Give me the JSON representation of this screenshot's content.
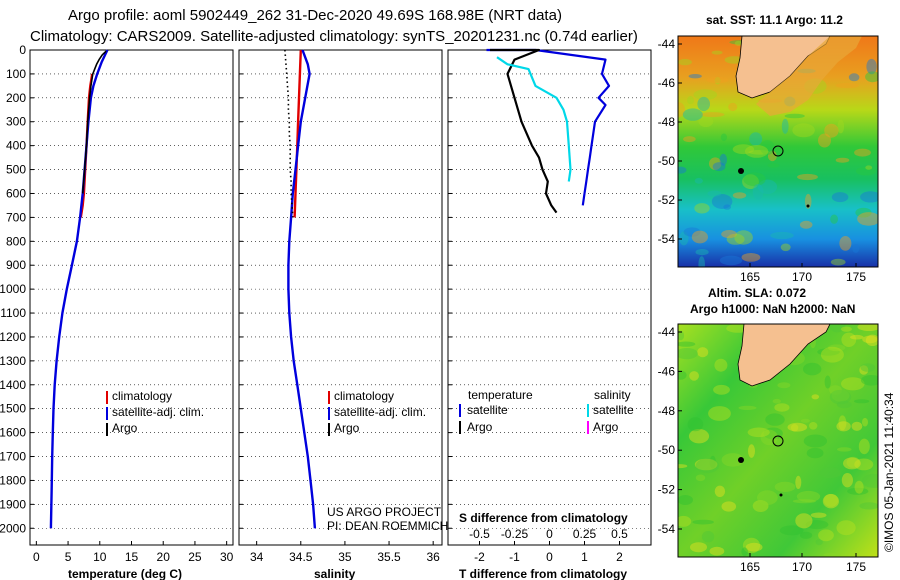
{
  "header": {
    "line1": "Argo profile: aoml 5902449_262 31-Dec-2020 49.69S 168.98E (NRT data)",
    "line2": "Climatology: CARS2009. Satellite-adjusted climatology: synTS_20201231.nc (0.74d earlier)"
  },
  "colors": {
    "climatology": "#e00000",
    "satellite": "#0000dd",
    "argo": "#000000",
    "sal_satellite": "#00d8e8",
    "sal_argo": "#ff00ff"
  },
  "chart_data": [
    {
      "type": "line",
      "id": "temperature",
      "xlabel": "temperature (deg C)",
      "xlim": [
        -1,
        31
      ],
      "xticks": [
        0,
        5,
        10,
        15,
        20,
        25,
        30
      ],
      "ylim": [
        2070,
        0
      ],
      "yticks": [
        0,
        100,
        200,
        300,
        400,
        500,
        600,
        700,
        800,
        900,
        1000,
        1100,
        1200,
        1300,
        1400,
        1500,
        1600,
        1700,
        1800,
        1900,
        2000
      ],
      "legend": [
        "climatology",
        "satellite-adj. clim.",
        "Argo"
      ],
      "series": [
        {
          "name": "climatology",
          "color": "#e00000",
          "x": [
            8.8,
            8.5,
            8.3,
            8.1,
            7.9,
            7.7,
            7.5,
            7.3,
            7.0
          ],
          "y": [
            100,
            150,
            200,
            300,
            400,
            500,
            600,
            650,
            700
          ]
        },
        {
          "name": "satellite-adj. clim.",
          "color": "#0000dd",
          "x": [
            11.2,
            10.3,
            9.6,
            9.0,
            8.6,
            8.2,
            7.9,
            7.6,
            7.3,
            6.9,
            6.4,
            5.6,
            4.8,
            4.1,
            3.6,
            3.2,
            2.9,
            2.7,
            2.6,
            2.5,
            2.4,
            2.3
          ],
          "y": [
            0,
            50,
            100,
            150,
            200,
            300,
            400,
            500,
            600,
            700,
            800,
            900,
            1000,
            1100,
            1200,
            1300,
            1400,
            1500,
            1600,
            1700,
            1850,
            2000
          ]
        },
        {
          "name": "Argo",
          "color": "#000000",
          "x": [
            11.0,
            10.4,
            9.9,
            9.5,
            9.2,
            8.9,
            8.6,
            8.4,
            8.1,
            7.9,
            7.6,
            7.3
          ],
          "y": [
            5,
            20,
            40,
            60,
            80,
            100,
            150,
            200,
            300,
            400,
            500,
            600
          ]
        }
      ]
    },
    {
      "type": "line",
      "id": "salinity",
      "xlabel": "salinity",
      "xlim": [
        33.8,
        36.1
      ],
      "xticks": [
        34,
        34.5,
        35,
        35.5,
        36
      ],
      "ylim": [
        2070,
        0
      ],
      "legend": [
        "climatology",
        "satellite-adj. clim.",
        "Argo"
      ],
      "annotation": [
        "US ARGO PROJECT",
        "PI: DEAN ROEMMICH"
      ],
      "series": [
        {
          "name": "climatology",
          "color": "#e00000",
          "x": [
            34.5,
            34.49,
            34.48,
            34.47,
            34.46,
            34.45,
            34.44,
            34.43
          ],
          "y": [
            0,
            100,
            200,
            300,
            400,
            500,
            600,
            700
          ]
        },
        {
          "name": "satellite-adj. clim.",
          "color": "#0000dd",
          "x": [
            34.52,
            34.58,
            34.6,
            34.55,
            34.5,
            34.47,
            34.44,
            34.41,
            34.39,
            34.37,
            34.36,
            34.36,
            34.37,
            34.39,
            34.42,
            34.46,
            34.5,
            34.54,
            34.58,
            34.61,
            34.64,
            34.66
          ],
          "y": [
            0,
            60,
            100,
            200,
            300,
            400,
            500,
            600,
            700,
            800,
            900,
            1000,
            1100,
            1200,
            1300,
            1400,
            1500,
            1600,
            1700,
            1800,
            1900,
            2000
          ]
        },
        {
          "name": "Argo",
          "color": "#000000",
          "x": [
            34.32,
            34.33,
            34.34,
            34.35,
            34.36,
            34.36,
            34.37,
            34.37,
            34.38,
            34.38,
            34.38,
            34.39,
            34.39,
            34.4,
            34.41
          ],
          "y": [
            0,
            50,
            100,
            150,
            200,
            250,
            300,
            350,
            400,
            450,
            500,
            550,
            600,
            650,
            700
          ]
        }
      ]
    },
    {
      "type": "line",
      "id": "difference",
      "xlabel": "T difference from climatology",
      "xlabel_top": "S difference from climatology",
      "xlim": [
        -2.9,
        2.9
      ],
      "xticks": [
        -2,
        -1,
        0,
        1,
        2
      ],
      "xticks_top": [
        "-0.5",
        "-0.25",
        "0",
        "0.25",
        "0.5"
      ],
      "ylim": [
        2070,
        0
      ],
      "legend_left_title": "temperature",
      "legend_right_title": "salinity",
      "legend_left": [
        "satellite",
        "Argo"
      ],
      "legend_right": [
        "satellite",
        "Argo"
      ],
      "series": [
        {
          "name": "temperature satellite",
          "color": "#0000dd",
          "x": [
            -1.8,
            -0.4,
            1.6,
            1.5,
            1.7,
            1.4,
            1.6,
            1.3,
            1.2,
            1.15,
            1.1,
            1.05,
            1.0,
            0.95
          ],
          "y": [
            0,
            0,
            40,
            100,
            150,
            200,
            230,
            300,
            400,
            450,
            500,
            550,
            600,
            650
          ]
        },
        {
          "name": "temperature Argo",
          "color": "#000000",
          "x": [
            -1.7,
            -0.3,
            -1.0,
            -1.2,
            -1.0,
            -0.8,
            -0.5,
            -0.3,
            -0.2,
            -0.05,
            -0.1,
            0.05,
            0.2
          ],
          "y": [
            0,
            0,
            40,
            100,
            200,
            300,
            400,
            450,
            500,
            550,
            600,
            650,
            680
          ]
        },
        {
          "name": "salinity satellite",
          "color": "#00d8e8",
          "x": [
            -1.5,
            -1.2,
            -0.6,
            -0.4,
            0.2,
            0.4,
            0.5,
            0.55,
            0.6,
            0.55
          ],
          "y": [
            30,
            60,
            80,
            150,
            200,
            250,
            300,
            400,
            500,
            550
          ]
        }
      ]
    }
  ],
  "maps": {
    "top": {
      "title": "sat. SST: 11.1 Argo: 11.2",
      "xticks": [
        "165",
        "170",
        "175"
      ],
      "yticks": [
        "-44",
        "-46",
        "-48",
        "-50",
        "-52",
        "-54"
      ]
    },
    "bottom": {
      "title_line1": "Altim. SLA: 0.072",
      "title_line2": "Argo h1000: NaN h2000: NaN",
      "xticks": [
        "165",
        "170",
        "175"
      ],
      "yticks": [
        "-44",
        "-46",
        "-48",
        "-50",
        "-52",
        "-54"
      ]
    },
    "watermark": "©IMOS 05-Jan-2021 11:40:34"
  }
}
